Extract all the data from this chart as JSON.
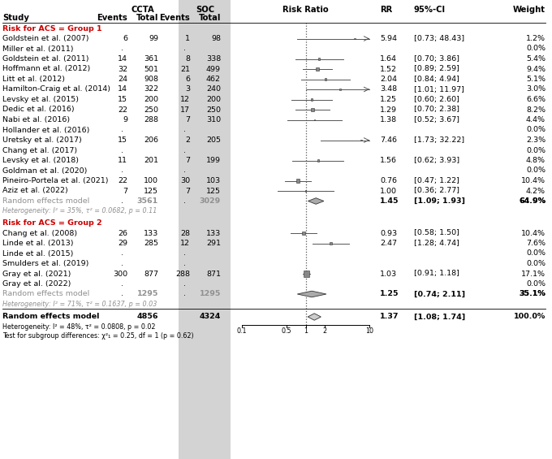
{
  "group1_header": "Risk for ACS = Group 1",
  "group2_header": "Risk for ACS = Group 2",
  "group1_studies": [
    {
      "name": "Goldstein et al. (2007)",
      "ccta_e": "6",
      "ccta_t": "99",
      "soc_e": "1",
      "soc_t": "98",
      "rr": 5.94,
      "ci_lo": 0.73,
      "ci_hi": 48.43,
      "weight": 1.2,
      "rr_str": "5.94",
      "ci_str": "[0.73; 48.43]",
      "w_str": "1.2%"
    },
    {
      "name": "Miller et al. (2011)",
      "ccta_e": "",
      "ccta_t": "",
      "soc_e": "",
      "soc_t": "",
      "rr": null,
      "ci_lo": null,
      "ci_hi": null,
      "weight": 0.0,
      "rr_str": "",
      "ci_str": "",
      "w_str": "0.0%"
    },
    {
      "name": "Goldstein et al. (2011)",
      "ccta_e": "14",
      "ccta_t": "361",
      "soc_e": "8",
      "soc_t": "338",
      "rr": 1.64,
      "ci_lo": 0.7,
      "ci_hi": 3.86,
      "weight": 5.4,
      "rr_str": "1.64",
      "ci_str": "[0.70; 3.86]",
      "w_str": "5.4%"
    },
    {
      "name": "Hoffmann et al. (2012)",
      "ccta_e": "32",
      "ccta_t": "501",
      "soc_e": "21",
      "soc_t": "499",
      "rr": 1.52,
      "ci_lo": 0.89,
      "ci_hi": 2.59,
      "weight": 9.4,
      "rr_str": "1.52",
      "ci_str": "[0.89; 2.59]",
      "w_str": "9.4%"
    },
    {
      "name": "Litt et al. (2012)",
      "ccta_e": "24",
      "ccta_t": "908",
      "soc_e": "6",
      "soc_t": "462",
      "rr": 2.04,
      "ci_lo": 0.84,
      "ci_hi": 4.94,
      "weight": 5.1,
      "rr_str": "2.04",
      "ci_str": "[0.84; 4.94]",
      "w_str": "5.1%"
    },
    {
      "name": "Hamilton-Craig et al. (2014)",
      "ccta_e": "14",
      "ccta_t": "322",
      "soc_e": "3",
      "soc_t": "240",
      "rr": 3.48,
      "ci_lo": 1.01,
      "ci_hi": 11.97,
      "weight": 3.0,
      "rr_str": "3.48",
      "ci_str": "[1.01; 11.97]",
      "w_str": "3.0%"
    },
    {
      "name": "Levsky et al. (2015)",
      "ccta_e": "15",
      "ccta_t": "200",
      "soc_e": "12",
      "soc_t": "200",
      "rr": 1.25,
      "ci_lo": 0.6,
      "ci_hi": 2.6,
      "weight": 6.6,
      "rr_str": "1.25",
      "ci_str": "[0.60; 2.60]",
      "w_str": "6.6%"
    },
    {
      "name": "Dedic et al. (2016)",
      "ccta_e": "22",
      "ccta_t": "250",
      "soc_e": "17",
      "soc_t": "250",
      "rr": 1.29,
      "ci_lo": 0.7,
      "ci_hi": 2.38,
      "weight": 8.2,
      "rr_str": "1.29",
      "ci_str": "[0.70; 2.38]",
      "w_str": "8.2%"
    },
    {
      "name": "Nabi et al. (2016)",
      "ccta_e": "9",
      "ccta_t": "288",
      "soc_e": "7",
      "soc_t": "310",
      "rr": 1.38,
      "ci_lo": 0.52,
      "ci_hi": 3.67,
      "weight": 4.4,
      "rr_str": "1.38",
      "ci_str": "[0.52; 3.67]",
      "w_str": "4.4%"
    },
    {
      "name": "Hollander et al. (2016)",
      "ccta_e": "",
      "ccta_t": "",
      "soc_e": "",
      "soc_t": "",
      "rr": null,
      "ci_lo": null,
      "ci_hi": null,
      "weight": 0.0,
      "rr_str": "",
      "ci_str": "",
      "w_str": "0.0%"
    },
    {
      "name": "Uretsky et al. (2017)",
      "ccta_e": "15",
      "ccta_t": "206",
      "soc_e": "2",
      "soc_t": "205",
      "rr": 7.46,
      "ci_lo": 1.73,
      "ci_hi": 32.22,
      "weight": 2.3,
      "rr_str": "7.46",
      "ci_str": "[1.73; 32.22]",
      "w_str": "2.3%"
    },
    {
      "name": "Chang et al. (2017)",
      "ccta_e": "",
      "ccta_t": "",
      "soc_e": "",
      "soc_t": "",
      "rr": null,
      "ci_lo": null,
      "ci_hi": null,
      "weight": 0.0,
      "rr_str": "",
      "ci_str": "",
      "w_str": "0.0%"
    },
    {
      "name": "Levsky et al. (2018)",
      "ccta_e": "11",
      "ccta_t": "201",
      "soc_e": "7",
      "soc_t": "199",
      "rr": 1.56,
      "ci_lo": 0.62,
      "ci_hi": 3.93,
      "weight": 4.8,
      "rr_str": "1.56",
      "ci_str": "[0.62; 3.93]",
      "w_str": "4.8%"
    },
    {
      "name": "Goldman et al. (2020)",
      "ccta_e": "",
      "ccta_t": "",
      "soc_e": "",
      "soc_t": "",
      "rr": null,
      "ci_lo": null,
      "ci_hi": null,
      "weight": 0.0,
      "rr_str": "",
      "ci_str": "",
      "w_str": "0.0%"
    },
    {
      "name": "Pineiro-Portela et al. (2021)",
      "ccta_e": "22",
      "ccta_t": "100",
      "soc_e": "30",
      "soc_t": "103",
      "rr": 0.76,
      "ci_lo": 0.47,
      "ci_hi": 1.22,
      "weight": 10.4,
      "rr_str": "0.76",
      "ci_str": "[0.47; 1.22]",
      "w_str": "10.4%"
    },
    {
      "name": "Aziz et al. (2022)",
      "ccta_e": "7",
      "ccta_t": "125",
      "soc_e": "7",
      "soc_t": "125",
      "rr": 1.0,
      "ci_lo": 0.36,
      "ci_hi": 2.77,
      "weight": 4.2,
      "rr_str": "1.00",
      "ci_str": "[0.36; 2.77]",
      "w_str": "4.2%"
    }
  ],
  "group1_random": {
    "ccta_t": "3561",
    "soc_t": "3029",
    "rr": 1.45,
    "ci_lo": 1.09,
    "ci_hi": 1.93,
    "rr_str": "1.45",
    "ci_str": "[1.09; 1.93]",
    "w_str": "64.9%"
  },
  "group1_hetero": "Heterogeneity: I² = 35%, τ² = 0.0682, p = 0.11",
  "group2_studies": [
    {
      "name": "Chang et al. (2008)",
      "ccta_e": "26",
      "ccta_t": "133",
      "soc_e": "28",
      "soc_t": "133",
      "rr": 0.93,
      "ci_lo": 0.58,
      "ci_hi": 1.5,
      "weight": 10.4,
      "rr_str": "0.93",
      "ci_str": "[0.58; 1.50]",
      "w_str": "10.4%"
    },
    {
      "name": "Linde et al. (2013)",
      "ccta_e": "29",
      "ccta_t": "285",
      "soc_e": "12",
      "soc_t": "291",
      "rr": 2.47,
      "ci_lo": 1.28,
      "ci_hi": 4.74,
      "weight": 7.6,
      "rr_str": "2.47",
      "ci_str": "[1.28; 4.74]",
      "w_str": "7.6%"
    },
    {
      "name": "Linde et al. (2015)",
      "ccta_e": "",
      "ccta_t": "",
      "soc_e": "",
      "soc_t": "",
      "rr": null,
      "ci_lo": null,
      "ci_hi": null,
      "weight": 0.0,
      "rr_str": "",
      "ci_str": "",
      "w_str": "0.0%"
    },
    {
      "name": "Smulders et al. (2019)",
      "ccta_e": "",
      "ccta_t": "",
      "soc_e": "",
      "soc_t": "",
      "rr": null,
      "ci_lo": null,
      "ci_hi": null,
      "weight": 0.0,
      "rr_str": "",
      "ci_str": "",
      "w_str": "0.0%"
    },
    {
      "name": "Gray et al. (2021)",
      "ccta_e": "300",
      "ccta_t": "877",
      "soc_e": "288",
      "soc_t": "871",
      "rr": 1.03,
      "ci_lo": 0.91,
      "ci_hi": 1.18,
      "weight": 17.1,
      "rr_str": "1.03",
      "ci_str": "[0.91; 1.18]",
      "w_str": "17.1%"
    },
    {
      "name": "Gray et al. (2022)",
      "ccta_e": "",
      "ccta_t": "",
      "soc_e": "",
      "soc_t": "",
      "rr": null,
      "ci_lo": null,
      "ci_hi": null,
      "weight": 0.0,
      "rr_str": "",
      "ci_str": "",
      "w_str": "0.0%"
    }
  ],
  "group2_random": {
    "ccta_t": "1295",
    "soc_t": "1295",
    "rr": 1.25,
    "ci_lo": 0.74,
    "ci_hi": 2.11,
    "rr_str": "1.25",
    "ci_str": "[0.74; 2.11]",
    "w_str": "35.1%"
  },
  "group2_hetero": "Heterogeneity: I² = 71%, τ² = 0.1637, p = 0.03",
  "overall_random": {
    "ccta_t": "4856",
    "soc_t": "4324",
    "rr": 1.37,
    "ci_lo": 1.08,
    "ci_hi": 1.74,
    "rr_str": "1.37",
    "ci_str": "[1.08; 1.74]",
    "w_str": "100.0%"
  },
  "overall_hetero": "Heterogeneity: I² = 48%, τ² = 0.0808, p = 0.02",
  "subgroup_test": "Test for subgroup differences: χ²₁ = 0.25, df = 1 (p = 0.62)",
  "bg_color_soc": "#d3d3d3",
  "group_header_color": "#cc0000",
  "random_model_color": "#909090",
  "hetero_color": "#909090"
}
